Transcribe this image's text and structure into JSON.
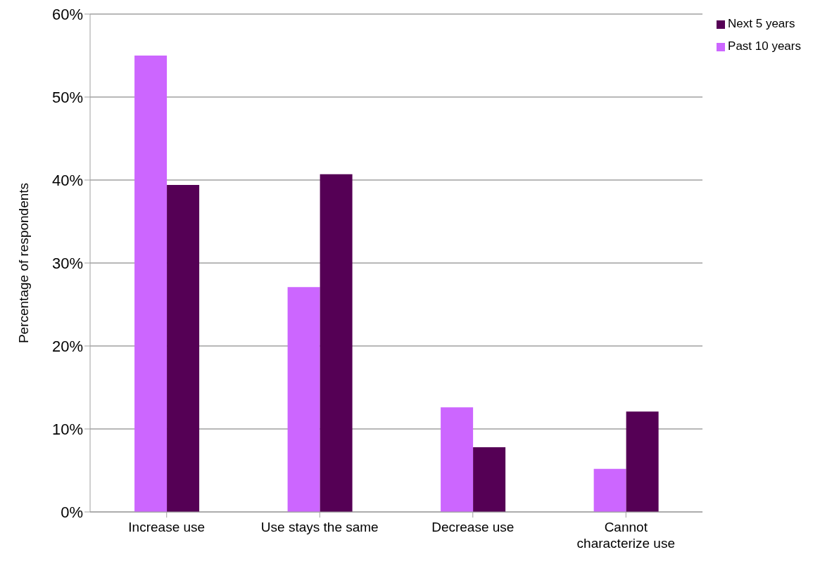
{
  "chart_data": {
    "type": "bar",
    "ylabel": "Percentage of respondents",
    "categories": [
      "Increase use",
      "Use stays the same",
      "Decrease use",
      "Cannot characterize use"
    ],
    "series": [
      {
        "name": "Past 10 years",
        "color": "#cc66ff",
        "values": [
          55.0,
          27.1,
          12.6,
          5.2
        ]
      },
      {
        "name": "Next 5 years",
        "color": "#550055",
        "values": [
          39.4,
          40.7,
          7.8,
          12.1
        ]
      }
    ],
    "ylim": [
      0,
      60
    ],
    "yticks": [
      {
        "value": 0,
        "label": "0%"
      },
      {
        "value": 10,
        "label": "10%"
      },
      {
        "value": 20,
        "label": "20%"
      },
      {
        "value": 30,
        "label": "30%"
      },
      {
        "value": 40,
        "label": "40%"
      },
      {
        "value": 50,
        "label": "50%"
      },
      {
        "value": 60,
        "label": "60%"
      }
    ],
    "grid": "y",
    "legend": "top right"
  }
}
